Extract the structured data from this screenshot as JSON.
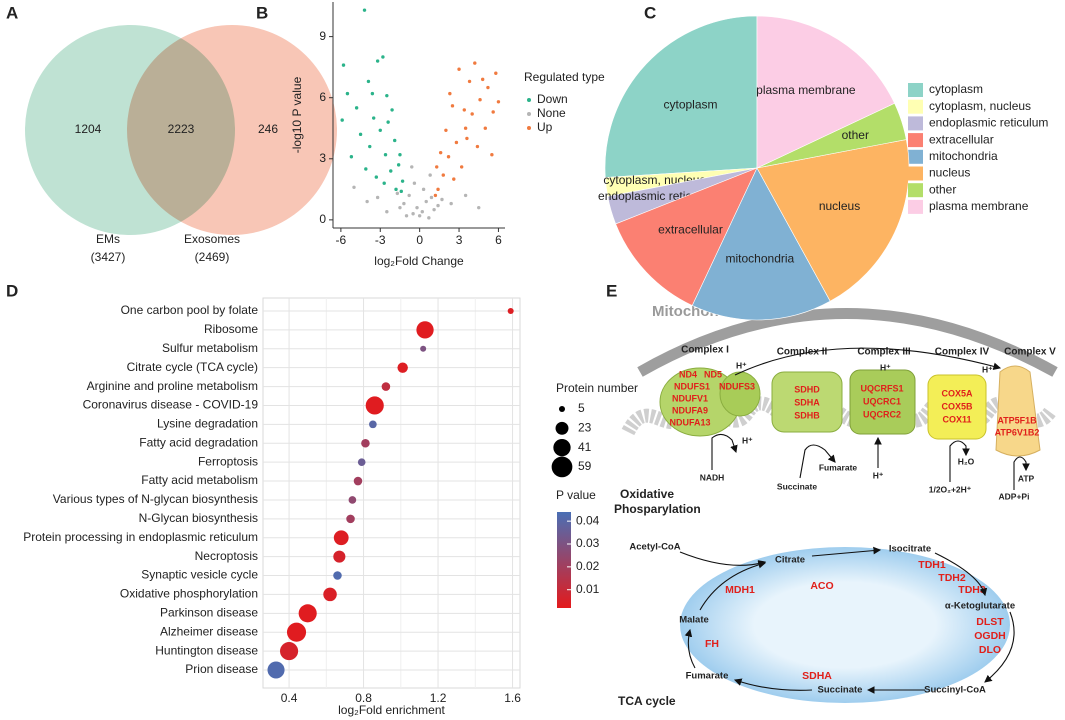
{
  "panel_labels": [
    "A",
    "B",
    "C",
    "D",
    "E"
  ],
  "chart_data": [
    {
      "type": "venn",
      "sets": [
        {
          "name": "EMs",
          "total": 3427,
          "total_label": "(3427)",
          "color": "#a9d9c4"
        },
        {
          "name": "Exosomes",
          "total": 2469,
          "total_label": "(2469)",
          "color": "#f6b39d"
        }
      ],
      "values": [
        1204,
        2223,
        246
      ]
    },
    {
      "type": "scatter",
      "xlabel": "log₂Fold Change",
      "ylabel": "-log10 P  value",
      "legend_title": "Regulated type",
      "xlim": [
        -6.6,
        6.5
      ],
      "ylim": [
        -0.4,
        10.7
      ],
      "xticks": [
        -6,
        -3,
        0,
        3,
        6
      ],
      "yticks": [
        0,
        3,
        6,
        9
      ],
      "series": [
        {
          "name": "Down",
          "color": "#2bb38a",
          "x": [
            -5.8,
            -4.2,
            -5.5,
            -4.8,
            -3.9,
            -3.2,
            -2.8,
            -3.5,
            -2.5,
            -2.1,
            -4.5,
            -3.8,
            -3,
            -2.6,
            -1.9,
            -2.2,
            -1.6,
            -1.3,
            -1.5,
            -5.2,
            -4.1,
            -3.3,
            -2.7,
            -1.8,
            -2.4,
            -5.9,
            -1.4,
            -3.6
          ],
          "values": [
            7.6,
            10.3,
            6.2,
            5.5,
            6.8,
            7.8,
            8,
            5,
            6.1,
            5.4,
            4.2,
            3.6,
            4.4,
            3.2,
            3.9,
            2.4,
            2.7,
            1.9,
            3.2,
            3.1,
            2.5,
            2.1,
            1.8,
            1.5,
            4.8,
            4.9,
            1.4,
            6.2
          ]
        },
        {
          "name": "None",
          "color": "#b5b5b5",
          "x": [
            -1.2,
            -0.8,
            -0.5,
            -0.2,
            0.2,
            0.5,
            0.9,
            1.1,
            -1,
            0.3,
            -0.4,
            0.7,
            -1.5,
            1.4,
            0,
            -2.5,
            -3.2,
            -4,
            -5,
            2.4,
            3.5,
            4.5,
            -0.6,
            0.8,
            -1.7,
            1.7
          ],
          "values": [
            0.8,
            1.2,
            0.3,
            0.6,
            0.4,
            0.9,
            1.1,
            0.5,
            0.2,
            1.5,
            1.8,
            0.1,
            0.6,
            0.7,
            0.2,
            0.4,
            1.1,
            0.9,
            1.6,
            0.8,
            1.2,
            0.6,
            2.6,
            2.2,
            1.3,
            1
          ]
        },
        {
          "name": "Up",
          "color": "#f07a3f",
          "x": [
            1.4,
            1.8,
            2.2,
            2.8,
            3.5,
            4,
            4.6,
            5.2,
            5.8,
            3,
            3.8,
            2.5,
            2,
            1.6,
            4.4,
            5,
            5.6,
            3.2,
            2.6,
            4.2,
            5.5,
            1.3,
            3.6,
            4.8,
            6,
            2.3,
            1.2,
            3.4
          ],
          "values": [
            1.5,
            2.2,
            3.1,
            3.8,
            4.5,
            5.2,
            5.9,
            6.5,
            7.2,
            7.4,
            6.8,
            5.6,
            4.4,
            3.3,
            3.6,
            4.5,
            5.3,
            2.6,
            2,
            7.7,
            3.2,
            2.6,
            4,
            6.9,
            5.8,
            6.2,
            1.2,
            5.4
          ]
        }
      ]
    },
    {
      "type": "pie",
      "categories": [
        "cytoplasm",
        "cytoplasm, nucleus",
        "endoplasmic reticulum",
        "extracellular",
        "mitochondria",
        "nucleus",
        "other",
        "plasma membrane"
      ],
      "values": [
        26,
        2,
        3,
        12,
        15,
        20,
        4,
        18
      ],
      "colors": [
        "#8dd3c7",
        "#ffffb3",
        "#bebada",
        "#fb8072",
        "#80b1d3",
        "#fdb462",
        "#b3de69",
        "#fccde5"
      ]
    },
    {
      "type": "bubble",
      "xlabel": "log₂Fold enrichment",
      "categories": [
        "One carbon pool by folate",
        "Ribosome",
        "Sulfur metabolism",
        "Citrate cycle (TCA cycle)",
        "Arginine and proline metabolism",
        "Coronavirus disease - COVID-19",
        "Lysine degradation",
        "Fatty acid degradation",
        "Ferroptosis",
        "Fatty acid metabolism",
        "Various types of N-glycan biosynthesis",
        "N-Glycan biosynthesis",
        "Protein processing in endoplasmic reticulum",
        "Necroptosis",
        "Synaptic vesicle cycle",
        "Oxidative phosphorylation",
        "Parkinson disease",
        "Alzheimer disease",
        "Huntington disease",
        "Prion disease"
      ],
      "values": [
        1.59,
        1.13,
        1.12,
        1.01,
        0.92,
        0.86,
        0.85,
        0.81,
        0.79,
        0.77,
        0.74,
        0.73,
        0.68,
        0.67,
        0.66,
        0.62,
        0.5,
        0.44,
        0.4,
        0.33
      ],
      "sizes": [
        5,
        41,
        5,
        15,
        10,
        45,
        8,
        10,
        8,
        10,
        8,
        10,
        30,
        20,
        10,
        25,
        45,
        50,
        45,
        40
      ],
      "p_values": [
        0.004,
        0.003,
        0.03,
        0.004,
        0.012,
        0.003,
        0.04,
        0.02,
        0.035,
        0.02,
        0.025,
        0.02,
        0.004,
        0.006,
        0.042,
        0.005,
        0.003,
        0.003,
        0.006,
        0.042
      ],
      "xlim": [
        0.26,
        1.64
      ],
      "xticks": [
        0.4,
        0.8,
        1.2,
        1.6
      ],
      "grid": true,
      "size_legend_title": "Protein number",
      "size_legend": [
        5,
        23,
        41,
        59
      ],
      "color_legend_title": "P value",
      "color_lim": [
        0.002,
        0.044
      ],
      "color_ticks": [
        0.01,
        0.02,
        0.03,
        0.04
      ],
      "colors": [
        "#e41a1c",
        "#4a6fb5"
      ]
    }
  ],
  "diagram": {
    "title": "Mitochondria",
    "complexes": [
      {
        "name": "Complex I",
        "genes": [
          "ND4",
          "ND5",
          "NDUFS1",
          "NDUFS3",
          "NDUFV1",
          "NDUFA9",
          "NDUFA13"
        ]
      },
      {
        "name": "Complex II",
        "genes": [
          "SDHD",
          "SDHA",
          "SDHB"
        ]
      },
      {
        "name": "Complex III",
        "genes": [
          "UQCRFS1",
          "UQCRC1",
          "UQCRC2"
        ]
      },
      {
        "name": "Complex IV",
        "genes": [
          "COX5A",
          "COX5B",
          "COX11"
        ]
      },
      {
        "name": "Complex V",
        "genes": [
          "ATP5F1B",
          "ATP6V1B2"
        ]
      }
    ],
    "molecules": [
      "NADH",
      "H⁺",
      "Succinate",
      "Fumarate",
      "H⁺",
      "1/2O₂+2H⁺",
      "H₂O",
      "ADP+Pi",
      "ATP",
      "H⁺",
      "H⁺",
      "H⁺"
    ],
    "process_label": [
      "Oxidative",
      "Phosparylation"
    ],
    "tca": {
      "title": "TCA cycle",
      "metabolites": [
        "Acetyl-CoA",
        "Citrate",
        "Isocitrate",
        "α-Ketoglutarate",
        "Succinyl-CoA",
        "Succinate",
        "Fumarate",
        "Malate"
      ],
      "enzymes": [
        "ACO",
        "TDH1",
        "TDH2",
        "TDH3",
        "DLST",
        "OGDH",
        "DLO",
        "SDHA",
        "FH",
        "MDH1"
      ]
    }
  }
}
